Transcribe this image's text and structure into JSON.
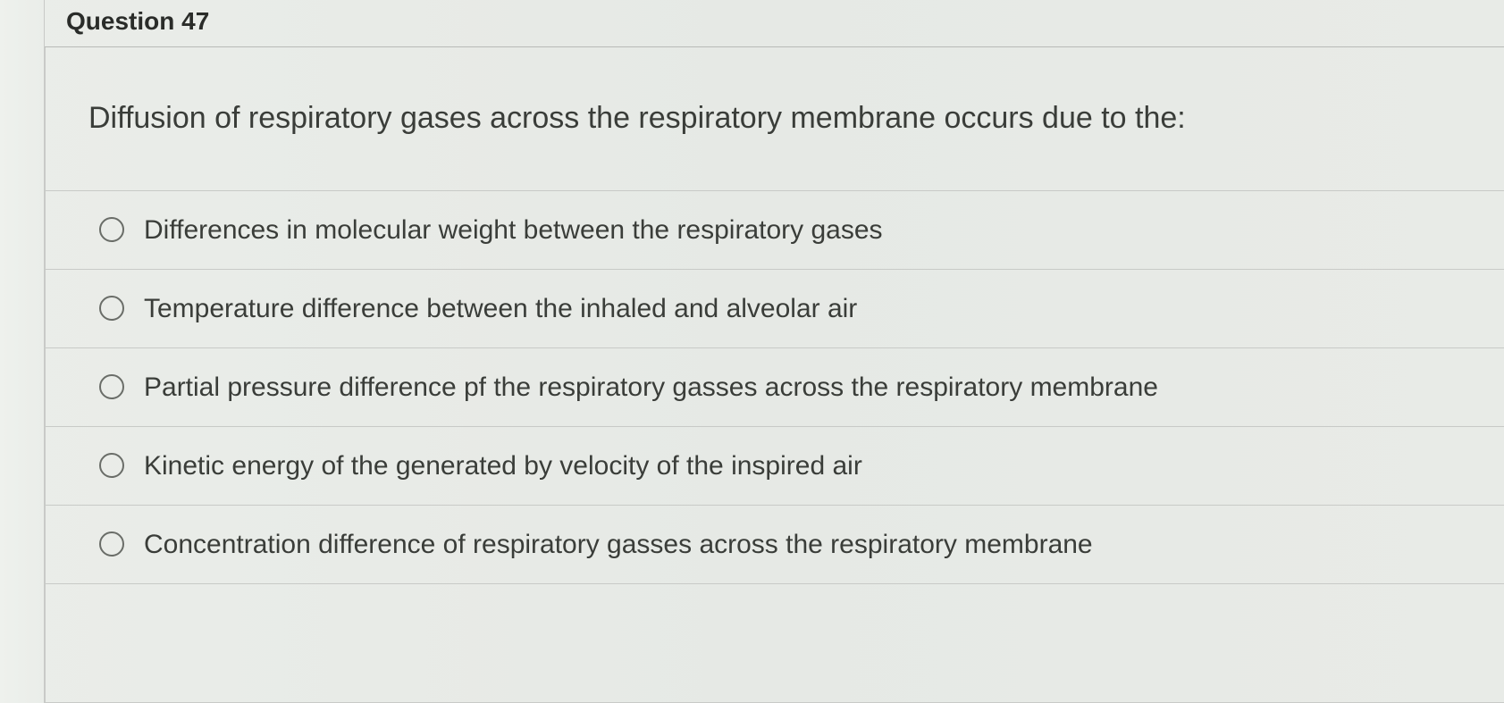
{
  "header": {
    "title": "Question 47"
  },
  "question": {
    "text": "Diffusion of respiratory gases across the respiratory membrane occurs due to the:"
  },
  "options": [
    {
      "label": "Differences in molecular weight between the respiratory gases"
    },
    {
      "label": "Temperature difference between the inhaled and alveolar air"
    },
    {
      "label": "Partial pressure difference pf the respiratory gasses across the respiratory membrane"
    },
    {
      "label": "Kinetic energy of the generated by velocity of the inspired air"
    },
    {
      "label": "Concentration difference of respiratory gasses across the respiratory membrane"
    }
  ],
  "styling": {
    "background_color": "#e8eae8",
    "border_color": "#c8cac7",
    "text_color": "#3a3d39",
    "radio_border_color": "#6a6d68",
    "question_fontsize": 34,
    "option_fontsize": 30,
    "header_fontsize": 28
  }
}
